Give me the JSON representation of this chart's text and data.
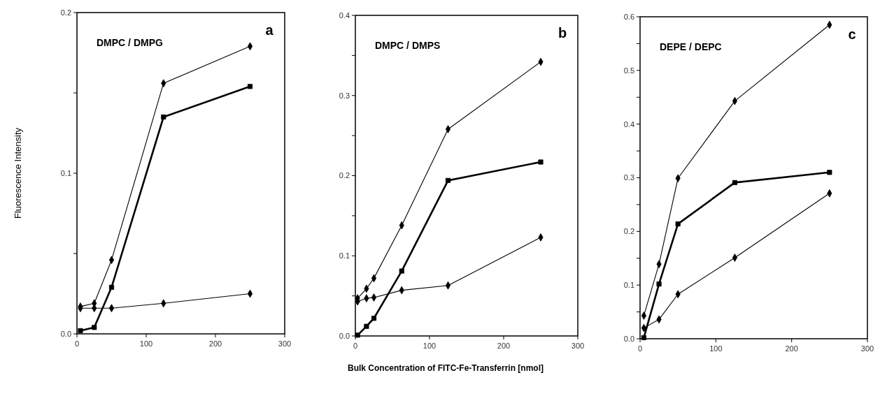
{
  "chart_data": [
    {
      "type": "line",
      "ylabel": "Fluorescence Intensity",
      "annotations": [
        "DMPC / DMPG",
        "a"
      ],
      "xlim": [
        0,
        300
      ],
      "xticks": [
        0,
        100,
        200,
        300
      ],
      "ylim": [
        0,
        0.2
      ],
      "yticks": [
        {
          "value": 0,
          "label": "0.0"
        },
        {
          "value": 0.05,
          "label": null
        },
        0.1,
        {
          "value": 0.15,
          "label": null
        },
        0.2
      ],
      "series": [
        {
          "color": "#000000",
          "marker": "diamond",
          "x": [
            5,
            25,
            50,
            125,
            250
          ],
          "values": [
            0.017,
            0.019,
            0.046,
            0.156,
            0.179
          ]
        },
        {
          "color": "#000000",
          "marker": "square",
          "x": [
            5,
            25,
            50,
            125,
            250
          ],
          "values": [
            0.002,
            0.004,
            0.029,
            0.135,
            0.154
          ]
        },
        {
          "color": "#000000",
          "marker": "diamond",
          "x": [
            5,
            25,
            50,
            125,
            250
          ],
          "values": [
            0.016,
            0.016,
            0.016,
            0.019,
            0.025
          ]
        }
      ]
    },
    {
      "type": "line",
      "xlabel": "Bulk Concentration of FITC-Fe-Transferrin [nmol]",
      "annotations": [
        "DMPC / DMPS",
        "b"
      ],
      "xlim": [
        0,
        300
      ],
      "xticks": [
        0,
        100,
        200,
        300
      ],
      "ylim": [
        0,
        0.4
      ],
      "yticks": [
        {
          "value": 0,
          "label": "0.0"
        },
        {
          "value": 0.05,
          "label": null
        },
        0.1,
        {
          "value": 0.15,
          "label": null
        },
        0.2,
        {
          "value": 0.25,
          "label": null
        },
        0.3,
        {
          "value": 0.35,
          "label": null
        },
        0.4
      ],
      "series": [
        {
          "color": "#000000",
          "marker": "diamond",
          "x": [
            3,
            15,
            25,
            62.5,
            125,
            250
          ],
          "values": [
            0.047,
            0.059,
            0.072,
            0.138,
            0.258,
            0.342
          ]
        },
        {
          "color": "#000000",
          "marker": "square",
          "x": [
            3,
            15,
            25,
            62.5,
            125,
            250
          ],
          "values": [
            0.001,
            0.012,
            0.022,
            0.081,
            0.194,
            0.217
          ]
        },
        {
          "color": "#000000",
          "marker": "diamond",
          "x": [
            3,
            15,
            25,
            62.5,
            125,
            250
          ],
          "values": [
            0.043,
            0.047,
            0.048,
            0.057,
            0.063,
            0.123
          ]
        }
      ]
    },
    {
      "type": "line",
      "annotations": [
        "DEPE / DEPC",
        "c"
      ],
      "xlim": [
        0,
        300
      ],
      "xticks": [
        0,
        100,
        200,
        300
      ],
      "ylim": [
        0,
        0.6
      ],
      "yticks": [
        {
          "value": 0,
          "label": "0.0"
        },
        {
          "value": 0.05,
          "label": null
        },
        0.1,
        {
          "value": 0.15,
          "label": null
        },
        0.2,
        {
          "value": 0.25,
          "label": null
        },
        0.3,
        {
          "value": 0.35,
          "label": null
        },
        0.4,
        {
          "value": 0.45,
          "label": null
        },
        0.5,
        {
          "value": 0.55,
          "label": null
        },
        0.6
      ],
      "series": [
        {
          "color": "#000000",
          "marker": "diamond",
          "x": [
            5,
            25,
            50,
            125,
            250
          ],
          "values": [
            0.043,
            0.139,
            0.299,
            0.443,
            0.585
          ]
        },
        {
          "color": "#000000",
          "marker": "square",
          "x": [
            5,
            25,
            50,
            125,
            250
          ],
          "values": [
            0.002,
            0.102,
            0.214,
            0.291,
            0.31
          ]
        },
        {
          "color": "#000000",
          "marker": "diamond",
          "x": [
            5,
            25,
            50,
            125,
            250
          ],
          "values": [
            0.02,
            0.036,
            0.083,
            0.151,
            0.271
          ]
        }
      ]
    }
  ]
}
